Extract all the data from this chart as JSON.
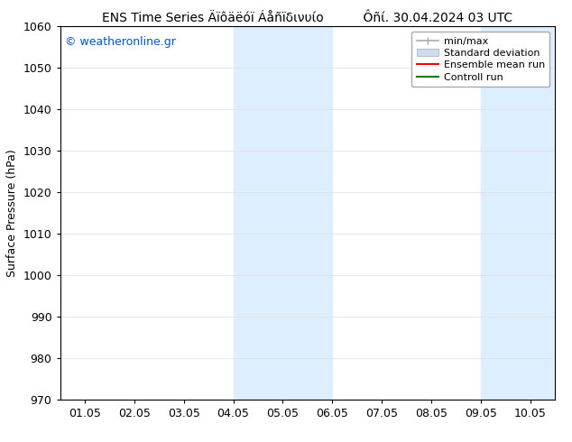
{
  "title_left": "ENS Time Series Äïôäëóï Áåñïδινυίο",
  "title_right": "Ôñί. 30.04.2024 03 UTC",
  "ylabel": "Surface Pressure (hPa)",
  "watermark": "© weatheronline.gr",
  "xtick_labels": [
    "01.05",
    "02.05",
    "03.05",
    "04.05",
    "05.05",
    "06.05",
    "07.05",
    "08.05",
    "09.05",
    "10.05"
  ],
  "ylim": [
    970,
    1060
  ],
  "ytick_step": 10,
  "background_color": "#ffffff",
  "plot_bg_color": "#ffffff",
  "shaded_regions": [
    {
      "xstart": 3.0,
      "xend": 5.0,
      "color": "#ddeeff"
    },
    {
      "xstart": 8.0,
      "xend": 9.5,
      "color": "#ddeeff"
    }
  ],
  "legend_entries": [
    {
      "label": "min/max",
      "color": "#aaaaaa",
      "lw": 1.2,
      "style": "solid",
      "type": "line_with_caps"
    },
    {
      "label": "Standard deviation",
      "color": "#ccddef",
      "lw": 6,
      "style": "solid",
      "type": "patch"
    },
    {
      "label": "Ensemble mean run",
      "color": "#ff0000",
      "lw": 1.5,
      "style": "solid",
      "type": "line"
    },
    {
      "label": "Controll run",
      "color": "#008000",
      "lw": 1.5,
      "style": "solid",
      "type": "line"
    }
  ],
  "font_family": "DejaVu Sans",
  "font_size_title": 10,
  "font_size_axis_label": 9,
  "font_size_tick": 9,
  "font_size_legend": 8,
  "font_size_watermark": 9,
  "watermark_color": "#0055cc",
  "spine_color": "#000000",
  "tick_color": "#000000",
  "legend_edge_color": "#aaaaaa",
  "legend_loc": "upper right"
}
